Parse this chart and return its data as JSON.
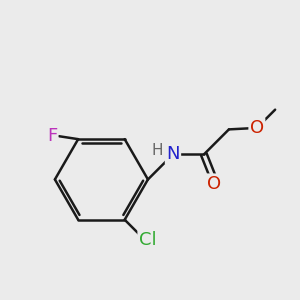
{
  "background_color": "#ebebeb",
  "bond_color": "#1a1a1a",
  "bond_width": 1.8,
  "atom_colors": {
    "N": "#2222cc",
    "O": "#cc2200",
    "F": "#bb33bb",
    "Cl": "#33aa33",
    "H": "#666666"
  },
  "font_size": 13,
  "font_size_h": 11
}
